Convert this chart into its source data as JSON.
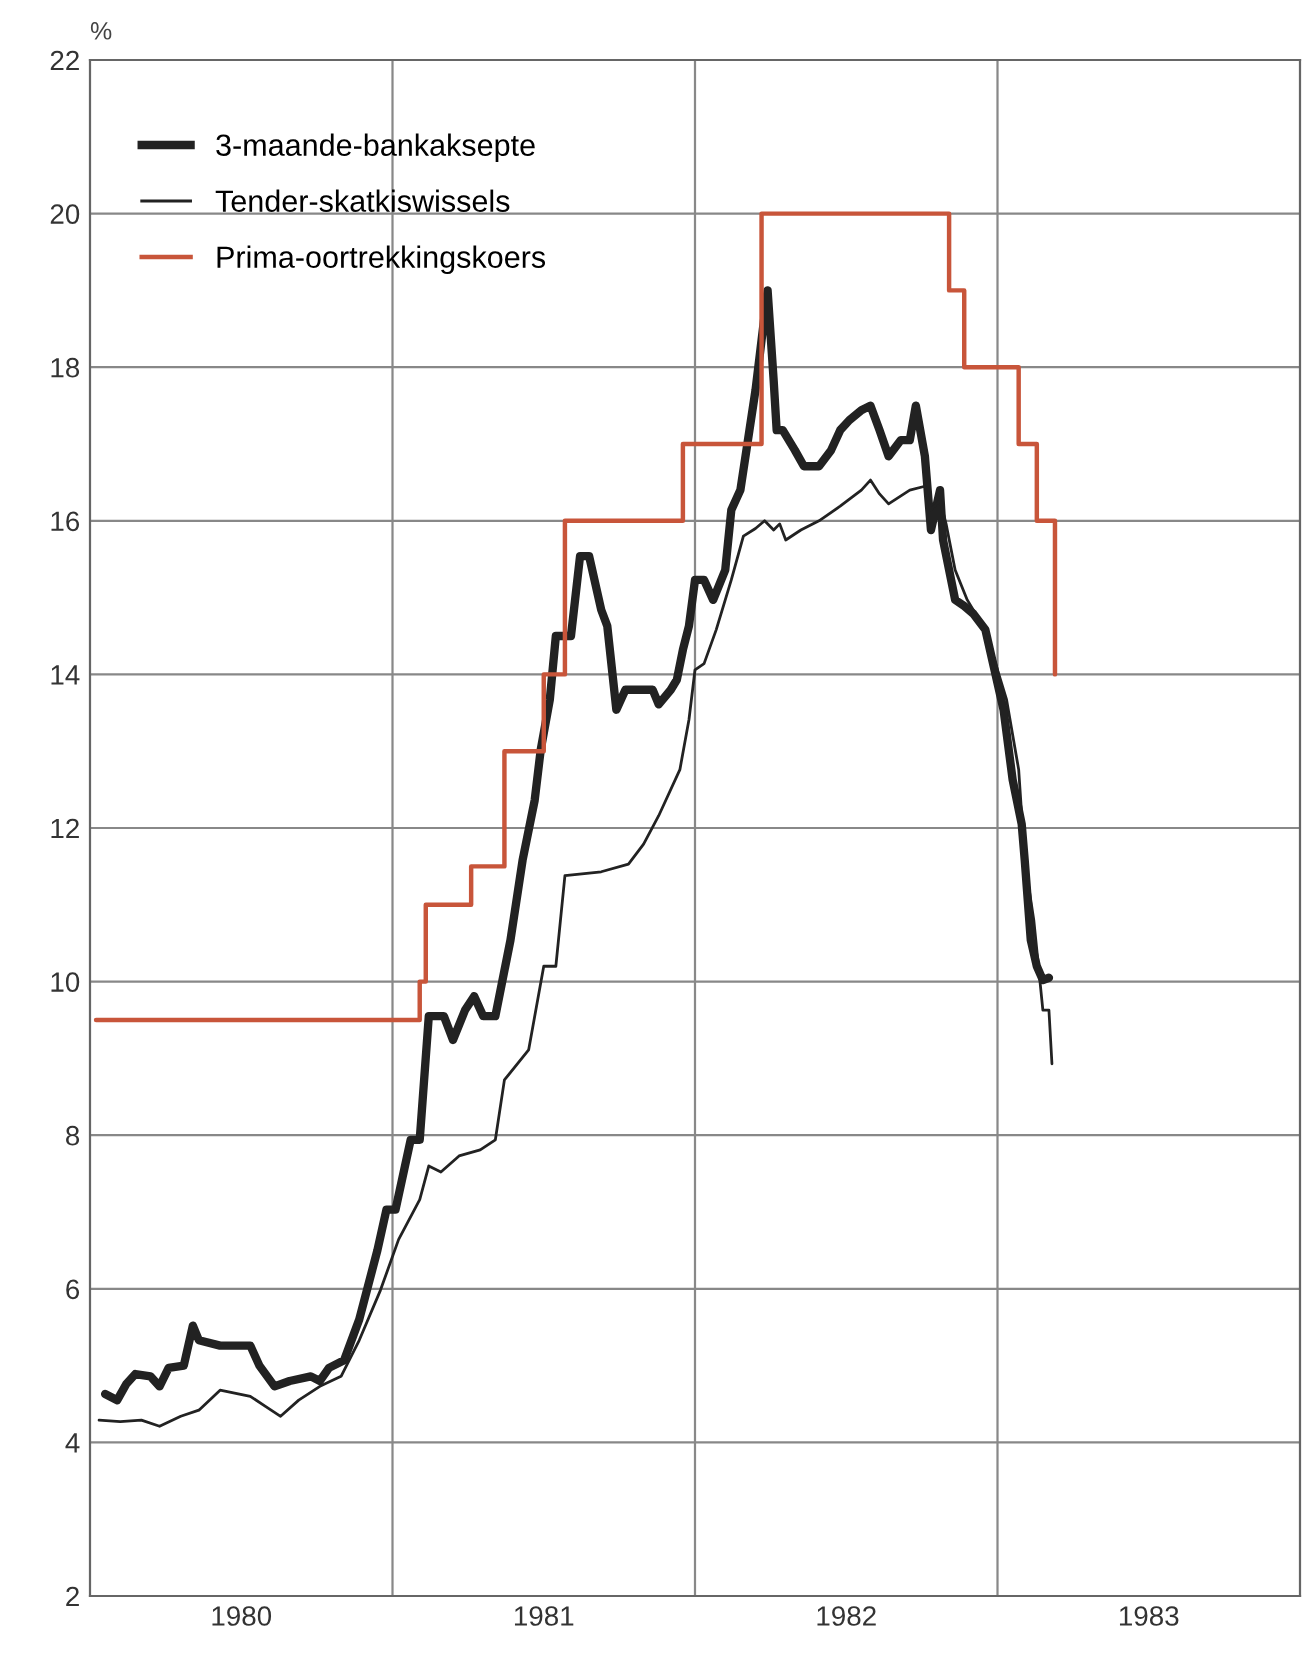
{
  "chart_data": {
    "type": "line",
    "ylabel": "%",
    "xlim": [
      1980,
      1984
    ],
    "ylim": [
      2,
      22
    ],
    "xticks": [
      {
        "value": 1980.5,
        "label": "1980"
      },
      {
        "value": 1981,
        "label": null
      },
      {
        "value": 1981.5,
        "label": "1981"
      },
      {
        "value": 1982,
        "label": null
      },
      {
        "value": 1982.5,
        "label": "1982"
      },
      {
        "value": 1983,
        "label": null
      },
      {
        "value": 1983.5,
        "label": "1983"
      }
    ],
    "yticks": [
      2,
      4,
      6,
      8,
      10,
      12,
      14,
      16,
      18,
      20,
      22
    ],
    "grid": true,
    "legend": "top left",
    "series": [
      {
        "name": "3-maande-bankaksepte",
        "color": "#222222",
        "x": [
          1980.05,
          1980.09,
          1980.12,
          1980.15,
          1980.2,
          1980.23,
          1980.26,
          1980.31,
          1980.34,
          1980.36,
          1980.43,
          1980.53,
          1980.56,
          1980.61,
          1980.66,
          1980.73,
          1980.76,
          1980.79,
          1980.84,
          1980.89,
          1980.95,
          1980.98,
          1981.01,
          1981.06,
          1981.09,
          1981.12,
          1981.17,
          1981.2,
          1981.24,
          1981.27,
          1981.3,
          1981.34,
          1981.39,
          1981.43,
          1981.47,
          1981.49,
          1981.52,
          1981.54,
          1981.59,
          1981.62,
          1981.65,
          1981.69,
          1981.71,
          1981.74,
          1981.77,
          1981.82,
          1981.86,
          1981.88,
          1981.92,
          1981.94,
          1981.96,
          1981.98,
          1982.0,
          1982.03,
          1982.06,
          1982.1,
          1982.12,
          1982.15,
          1982.18,
          1982.2,
          1982.22,
          1982.24,
          1982.26,
          1982.27,
          1982.29,
          1982.33,
          1982.36,
          1982.41,
          1982.45,
          1982.48,
          1982.51,
          1982.55,
          1982.58,
          1982.61,
          1982.64,
          1982.68,
          1982.71,
          1982.73,
          1982.76,
          1982.78,
          1982.81,
          1982.82,
          1982.86,
          1982.89,
          1982.92,
          1982.96,
          1982.99,
          1983.02,
          1983.05,
          1983.08,
          1983.09,
          1983.11,
          1983.13,
          1983.15,
          1983.17
        ],
        "values": [
          4.63,
          4.55,
          4.76,
          4.89,
          4.86,
          4.73,
          4.97,
          5.0,
          5.52,
          5.33,
          5.26,
          5.26,
          5.0,
          4.73,
          4.8,
          4.86,
          4.8,
          4.97,
          5.07,
          5.6,
          6.5,
          7.03,
          7.03,
          7.94,
          7.94,
          9.55,
          9.55,
          9.24,
          9.63,
          9.81,
          9.55,
          9.55,
          10.54,
          11.58,
          12.36,
          13.02,
          13.67,
          14.5,
          14.5,
          15.54,
          15.54,
          14.84,
          14.63,
          13.54,
          13.8,
          13.8,
          13.8,
          13.61,
          13.8,
          13.93,
          14.32,
          14.63,
          15.23,
          15.23,
          14.97,
          15.36,
          16.14,
          16.4,
          17.18,
          17.7,
          18.35,
          19.0,
          17.83,
          17.18,
          17.18,
          16.92,
          16.71,
          16.71,
          16.92,
          17.18,
          17.31,
          17.44,
          17.5,
          17.18,
          16.84,
          17.05,
          17.05,
          17.5,
          16.84,
          15.88,
          16.4,
          15.75,
          14.97,
          14.89,
          14.79,
          14.58,
          14.06,
          13.54,
          12.63,
          12.05,
          11.58,
          10.54,
          10.2,
          10.02,
          10.05
        ]
      },
      {
        "name": "Tender-skatkiswissels",
        "color": "#222222",
        "x": [
          1980.03,
          1980.1,
          1980.17,
          1980.23,
          1980.3,
          1980.36,
          1980.43,
          1980.53,
          1980.58,
          1980.63,
          1980.69,
          1980.76,
          1980.83,
          1980.89,
          1980.96,
          1981.02,
          1981.09,
          1981.12,
          1981.16,
          1981.22,
          1981.29,
          1981.34,
          1981.37,
          1981.45,
          1981.5,
          1981.54,
          1981.57,
          1981.69,
          1981.78,
          1981.83,
          1981.88,
          1981.95,
          1981.98,
          1982.0,
          1982.03,
          1982.07,
          1982.12,
          1982.16,
          1982.2,
          1982.23,
          1982.26,
          1982.28,
          1982.3,
          1982.35,
          1982.41,
          1982.48,
          1982.55,
          1982.58,
          1982.61,
          1982.64,
          1982.71,
          1982.76,
          1982.78,
          1982.81,
          1982.83,
          1982.86,
          1982.9,
          1982.94,
          1982.99,
          1983.03,
          1983.07,
          1983.09,
          1983.1,
          1983.12,
          1983.14,
          1983.15,
          1983.17,
          1983.18
        ],
        "values": [
          4.29,
          4.27,
          4.29,
          4.21,
          4.34,
          4.42,
          4.68,
          4.6,
          4.47,
          4.34,
          4.55,
          4.73,
          4.86,
          5.33,
          5.98,
          6.64,
          7.16,
          7.6,
          7.52,
          7.73,
          7.81,
          7.94,
          8.72,
          9.11,
          10.2,
          10.2,
          11.38,
          11.43,
          11.53,
          11.79,
          12.16,
          12.76,
          13.41,
          14.06,
          14.14,
          14.58,
          15.23,
          15.8,
          15.9,
          16.0,
          15.88,
          15.96,
          15.75,
          15.88,
          16.0,
          16.19,
          16.4,
          16.53,
          16.35,
          16.22,
          16.4,
          16.45,
          16.14,
          16.27,
          15.96,
          15.36,
          14.97,
          14.71,
          14.19,
          13.67,
          12.76,
          11.58,
          11.32,
          10.8,
          10.02,
          9.63,
          9.63,
          8.93
        ]
      },
      {
        "name": "Prima-oortrekkingskoers",
        "color": "#c8553a",
        "type": "step",
        "x": [
          1980.02,
          1981.09,
          1981.11,
          1981.26,
          1981.37,
          1981.5,
          1981.57,
          1981.96,
          1982.22,
          1982.84,
          1982.89,
          1983.07,
          1983.13,
          1983.19
        ],
        "values": [
          9.5,
          10,
          11,
          11.5,
          13,
          14,
          16,
          17,
          20,
          19,
          18,
          17,
          16,
          14
        ]
      }
    ]
  }
}
